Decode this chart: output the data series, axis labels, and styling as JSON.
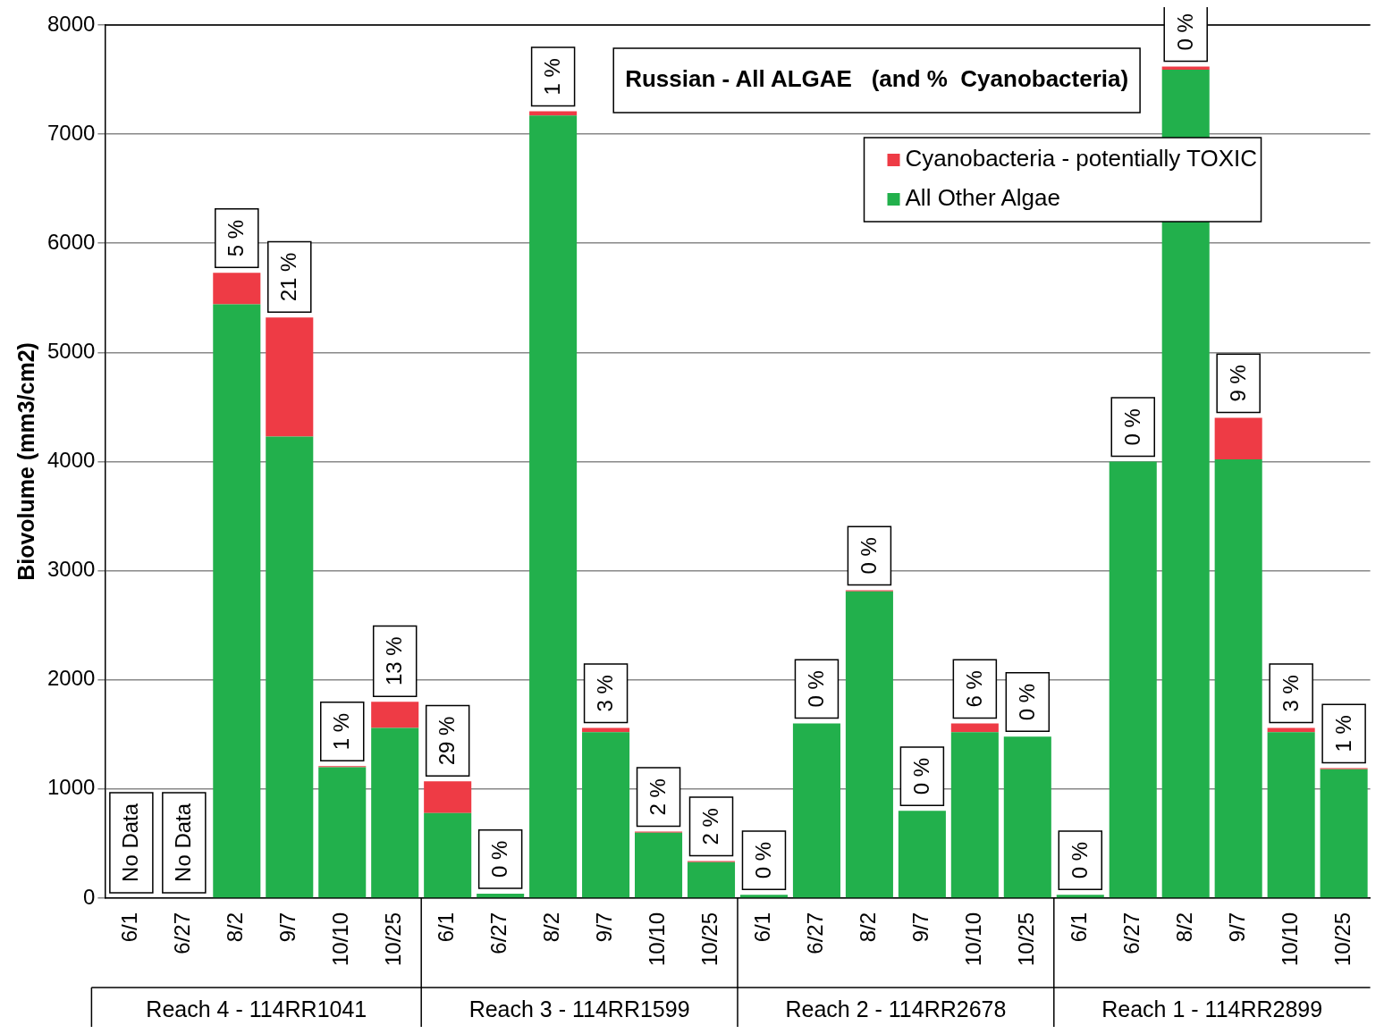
{
  "chart_data": {
    "type": "bar",
    "stacked": true,
    "title": "Russian - All ALGAE   (and %  Cyanobacteria)",
    "ylabel": "Biovolume (mm3/cm2)",
    "categories": [
      "6/1",
      "6/27",
      "8/2",
      "9/7",
      "10/10",
      "10/25",
      "6/1",
      "6/27",
      "8/2",
      "9/7",
      "10/10",
      "10/25",
      "6/1",
      "6/27",
      "8/2",
      "9/7",
      "10/10",
      "10/25",
      "6/1",
      "6/27",
      "8/2",
      "9/7",
      "10/10",
      "10/25"
    ],
    "series": [
      {
        "name": "All Other Algae",
        "color": "#22b04c",
        "values": [
          null,
          null,
          5440,
          4230,
          1200,
          1560,
          780,
          40,
          7170,
          1520,
          600,
          330,
          30,
          1600,
          2810,
          800,
          1520,
          1480,
          30,
          4000,
          7590,
          4020,
          1520,
          1180
        ]
      },
      {
        "name": "Cyanobacteria - potentially TOXIC",
        "color": "#ee3b45",
        "values": [
          null,
          null,
          290,
          1090,
          10,
          240,
          290,
          0,
          40,
          40,
          10,
          10,
          0,
          0,
          10,
          0,
          80,
          0,
          0,
          0,
          30,
          380,
          40,
          10
        ]
      }
    ],
    "annotations": [
      "No Data",
      "No Data",
      {
        "text": "5 %",
        "y": 5730
      },
      {
        "text": "21 %",
        "y": 5320
      },
      {
        "text": "1 %",
        "y": 1210
      },
      {
        "text": "13 %",
        "y": 1800
      },
      {
        "text": "29 %",
        "y": 1070
      },
      {
        "text": "0 %",
        "y": 40
      },
      {
        "text": "1 %",
        "y": 7210
      },
      {
        "text": "3 %",
        "y": 1560
      },
      {
        "text": "2 %",
        "y": 610
      },
      {
        "text": "2 %",
        "y": 340
      },
      {
        "text": "0 %",
        "y": 30
      },
      {
        "text": "0 %",
        "y": 1600
      },
      {
        "text": "0 %",
        "y": 2820
      },
      {
        "text": "0 %",
        "y": 800
      },
      {
        "text": "6 %",
        "y": 1600
      },
      {
        "text": "0 %",
        "y": 1480
      },
      {
        "text": "0 %",
        "y": 30
      },
      {
        "text": "0 %",
        "y": 4000
      },
      {
        "text": "0 %",
        "y": 7620
      },
      {
        "text": "9 %",
        "y": 4400
      },
      {
        "text": "3 %",
        "y": 1560
      },
      {
        "text": "1 %",
        "y": 1190
      },
      "Reach 4 - 114RR1041",
      "Reach 3 - 114RR1599",
      "Reach 2 - 114RR2678",
      "Reach 1 - 114RR2899"
    ],
    "ylim": [
      0,
      8000
    ],
    "yticks": [
      0,
      1000,
      2000,
      3000,
      4000,
      5000,
      6000,
      7000,
      8000
    ],
    "grid": "y",
    "legend": "top right"
  }
}
